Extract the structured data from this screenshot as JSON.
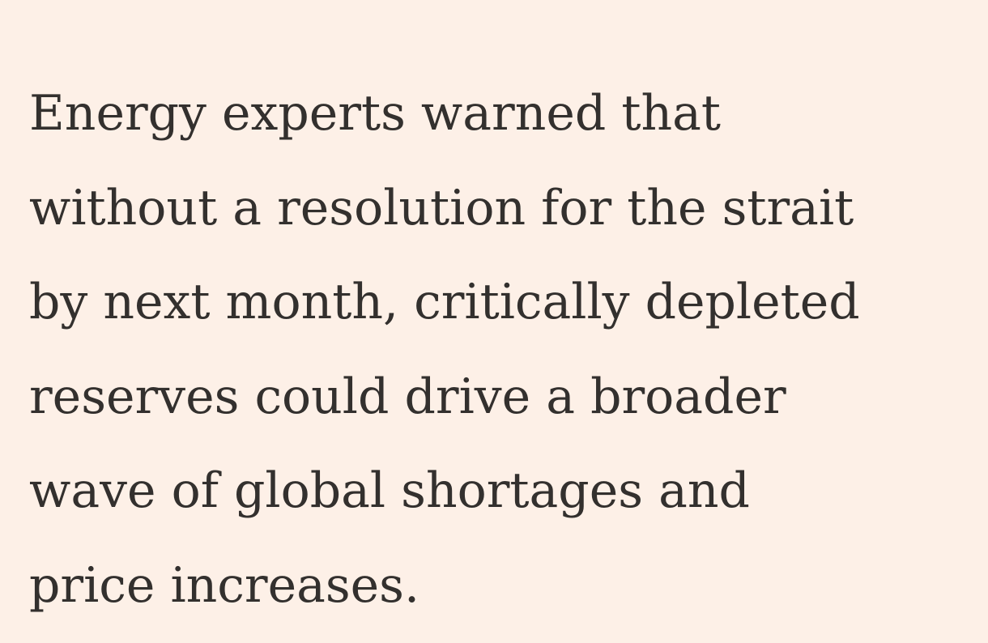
{
  "paragraph": {
    "lines": [
      "Energy experts warned that",
      "without a resolution for the strait",
      "by next month, critically depleted",
      "reserves could drive a broader",
      "wave of global shortages and",
      "price increases."
    ]
  }
}
